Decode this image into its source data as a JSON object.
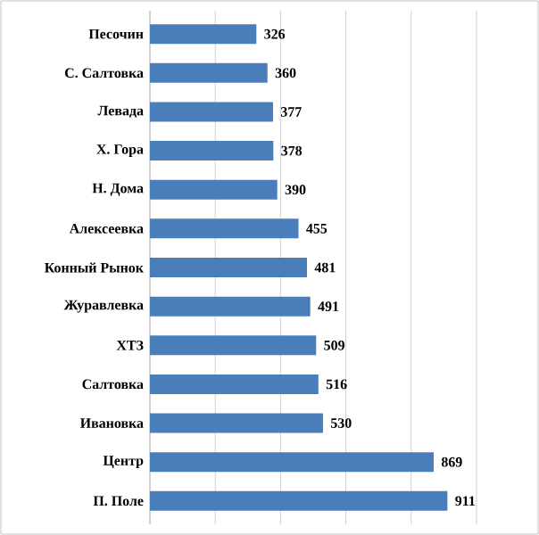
{
  "chart_data": {
    "type": "bar",
    "orientation": "horizontal",
    "categories": [
      "Песочин",
      "С. Салтовка",
      "Левада",
      "Х. Гора",
      "Н. Дома",
      "Алексеевка",
      "Конный Рынок",
      "Журавлевка",
      "ХТЗ",
      "Салтовка",
      "Ивановка",
      "Центр",
      "П. Поле"
    ],
    "values": [
      326,
      360,
      377,
      378,
      390,
      455,
      481,
      491,
      509,
      516,
      530,
      869,
      911
    ],
    "color": "#4a7ebb",
    "grid": "x",
    "tick_labels": "y",
    "data_labels": true
  }
}
